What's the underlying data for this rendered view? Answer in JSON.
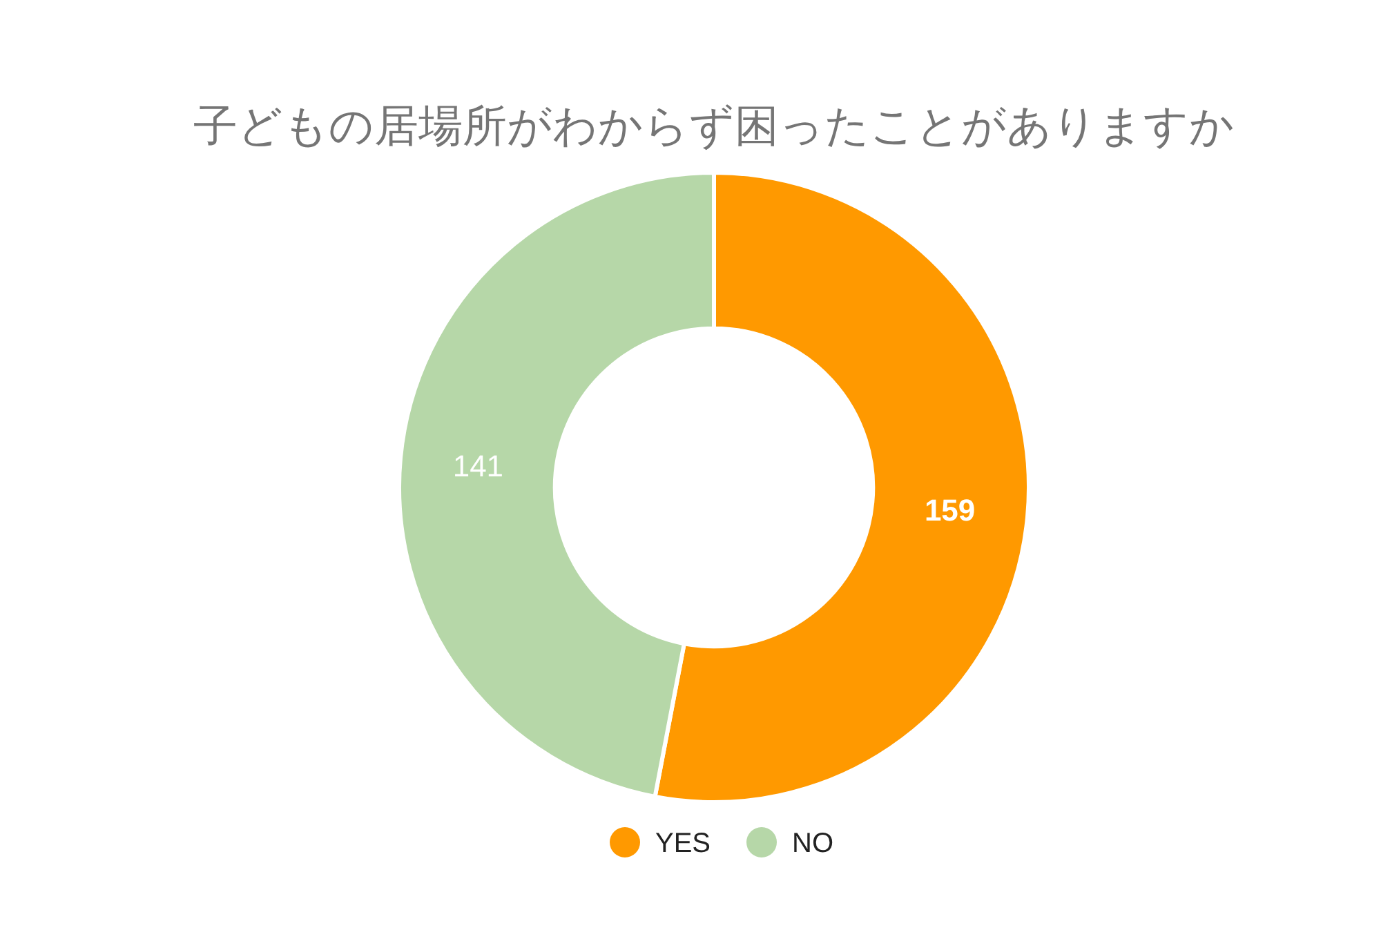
{
  "chart_data": {
    "type": "donut",
    "title": "子どもの居場所がわからず困ったことがありますか",
    "categories": [
      "YES",
      "NO"
    ],
    "values": [
      159,
      141
    ],
    "colors": [
      "#ff9900",
      "#b6d7a8"
    ],
    "data_labels": true,
    "legend": "bottom"
  }
}
